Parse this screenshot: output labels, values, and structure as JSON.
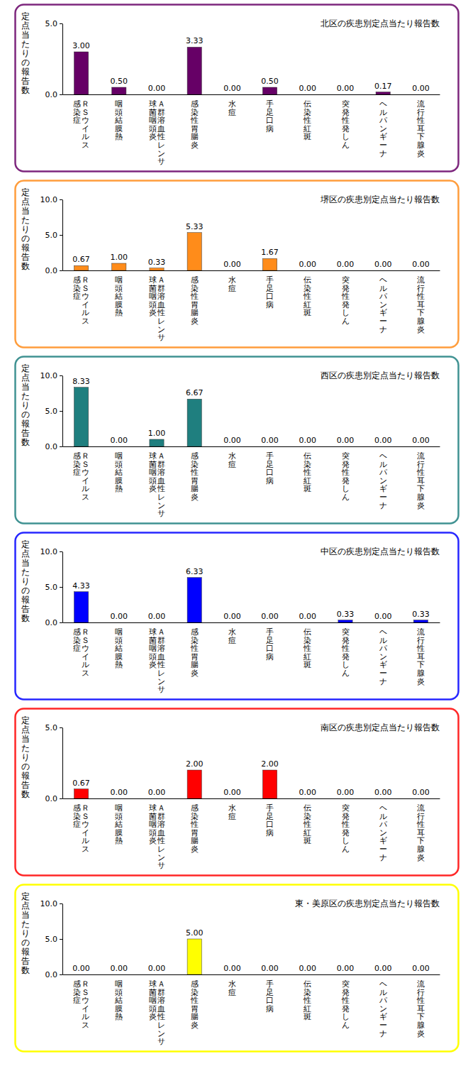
{
  "chart_data": [
    {
      "type": "bar",
      "title": "北区の疾患別定点当たり報告数",
      "y_label": "定点当たりの報告数",
      "categories": [
        "ＲＳウイルス\n感染症",
        "咽頭結膜熱",
        "Ａ群溶血性レンサ\n球菌咽頭炎",
        "感染性胃腸炎",
        "水痘",
        "手足口病",
        "伝染性紅斑",
        "突発性発しん",
        "ヘルパンギーナ",
        "流行性耳下腺炎"
      ],
      "values": [
        3,
        0.5,
        0,
        3.33,
        0,
        0.5,
        0,
        0,
        0.17,
        0
      ],
      "value_labels": [
        "3.00",
        "0.50",
        "0.00",
        "3.33",
        "0.00",
        "0.50",
        "0.00",
        "0.00",
        "0.17",
        "0.00"
      ],
      "color": "#660066",
      "ylim": [
        0,
        5
      ],
      "yticks": [
        {
          "value": 0,
          "label": "0.0"
        },
        {
          "value": 5,
          "label": "5.0"
        }
      ],
      "grid": false,
      "data_labels": true
    },
    {
      "type": "bar",
      "title": "堺区の疾患別定点当たり報告数",
      "y_label": "定点当たりの報告数",
      "categories": [
        "ＲＳウイルス\n感染症",
        "咽頭結膜熱",
        "Ａ群溶血性レンサ\n球菌咽頭炎",
        "感染性胃腸炎",
        "水痘",
        "手足口病",
        "伝染性紅斑",
        "突発性発しん",
        "ヘルパンギーナ",
        "流行性耳下腺炎"
      ],
      "values": [
        0.67,
        1,
        0.33,
        5.33,
        0,
        1.67,
        0,
        0,
        0,
        0
      ],
      "value_labels": [
        "0.67",
        "1.00",
        "0.33",
        "5.33",
        "0.00",
        "1.67",
        "0.00",
        "0.00",
        "0.00",
        "0.00"
      ],
      "color": "#ff8c1a",
      "ylim": [
        0,
        10
      ],
      "yticks": [
        {
          "value": 0,
          "label": "0.0"
        },
        {
          "value": 5,
          "label": "5.0"
        },
        {
          "value": 10,
          "label": "10.0"
        }
      ],
      "grid": false,
      "data_labels": true
    },
    {
      "type": "bar",
      "title": "西区の疾患別定点当たり報告数",
      "y_label": "定点当たりの報告数",
      "categories": [
        "ＲＳウイルス\n感染症",
        "咽頭結膜熱",
        "Ａ群溶血性レンサ\n球菌咽頭炎",
        "感染性胃腸炎",
        "水痘",
        "手足口病",
        "伝染性紅斑",
        "突発性発しん",
        "ヘルパンギーナ",
        "流行性耳下腺炎"
      ],
      "values": [
        8.33,
        0,
        1,
        6.67,
        0,
        0,
        0,
        0,
        0,
        0
      ],
      "value_labels": [
        "8.33",
        "0.00",
        "1.00",
        "6.67",
        "0.00",
        "0.00",
        "0.00",
        "0.00",
        "0.00",
        "0.00"
      ],
      "color": "#1f7f7f",
      "ylim": [
        0,
        10
      ],
      "yticks": [
        {
          "value": 0,
          "label": "0.0"
        },
        {
          "value": 5,
          "label": "5.0"
        },
        {
          "value": 10,
          "label": "10.0"
        }
      ],
      "grid": false,
      "data_labels": true
    },
    {
      "type": "bar",
      "title": "中区の疾患別定点当たり報告数",
      "y_label": "定点当たりの報告数",
      "categories": [
        "ＲＳウイルス\n感染症",
        "咽頭結膜熱",
        "Ａ群溶血性レンサ\n球菌咽頭炎",
        "感染性胃腸炎",
        "水痘",
        "手足口病",
        "伝染性紅斑",
        "突発性発しん",
        "ヘルパンギーナ",
        "流行性耳下腺炎"
      ],
      "values": [
        4.33,
        0,
        0,
        6.33,
        0,
        0,
        0,
        0.33,
        0,
        0.33
      ],
      "value_labels": [
        "4.33",
        "0.00",
        "0.00",
        "6.33",
        "0.00",
        "0.00",
        "0.00",
        "0.33",
        "0.00",
        "0.33"
      ],
      "color": "#0000ff",
      "ylim": [
        0,
        10
      ],
      "yticks": [
        {
          "value": 0,
          "label": "0.0"
        },
        {
          "value": 5,
          "label": "5.0"
        },
        {
          "value": 10,
          "label": "10.0"
        }
      ],
      "grid": false,
      "data_labels": true
    },
    {
      "type": "bar",
      "title": "南区の疾患別定点当たり報告数",
      "y_label": "定点当たりの報告数",
      "categories": [
        "ＲＳウイルス\n感染症",
        "咽頭結膜熱",
        "Ａ群溶血性レンサ\n球菌咽頭炎",
        "感染性胃腸炎",
        "水痘",
        "手足口病",
        "伝染性紅斑",
        "突発性発しん",
        "ヘルパンギーナ",
        "流行性耳下腺炎"
      ],
      "values": [
        0.67,
        0,
        0,
        2,
        0,
        2,
        0,
        0,
        0,
        0
      ],
      "value_labels": [
        "0.67",
        "0.00",
        "0.00",
        "2.00",
        "0.00",
        "2.00",
        "0.00",
        "0.00",
        "0.00",
        "0.00"
      ],
      "color": "#ff0000",
      "ylim": [
        0,
        5
      ],
      "yticks": [
        {
          "value": 0,
          "label": "0.0"
        },
        {
          "value": 5,
          "label": "5.0"
        }
      ],
      "grid": false,
      "data_labels": true
    },
    {
      "type": "bar",
      "title": "東・美原区の疾患別定点当たり報告数",
      "y_label": "定点当たりの報告数",
      "categories": [
        "ＲＳウイルス\n感染症",
        "咽頭結膜熱",
        "Ａ群溶血性レンサ\n球菌咽頭炎",
        "感染性胃腸炎",
        "水痘",
        "手足口病",
        "伝染性紅斑",
        "突発性発しん",
        "ヘルパンギーナ",
        "流行性耳下腺炎"
      ],
      "values": [
        0,
        0,
        0,
        5,
        0,
        0,
        0,
        0,
        0,
        0
      ],
      "value_labels": [
        "0.00",
        "0.00",
        "0.00",
        "5.00",
        "0.00",
        "0.00",
        "0.00",
        "0.00",
        "0.00",
        "0.00"
      ],
      "color": "#ffff00",
      "ylim": [
        0,
        10
      ],
      "yticks": [
        {
          "value": 0,
          "label": "0.0"
        },
        {
          "value": 5,
          "label": "5.0"
        },
        {
          "value": 10,
          "label": "10.0"
        }
      ],
      "grid": false,
      "data_labels": true
    }
  ]
}
